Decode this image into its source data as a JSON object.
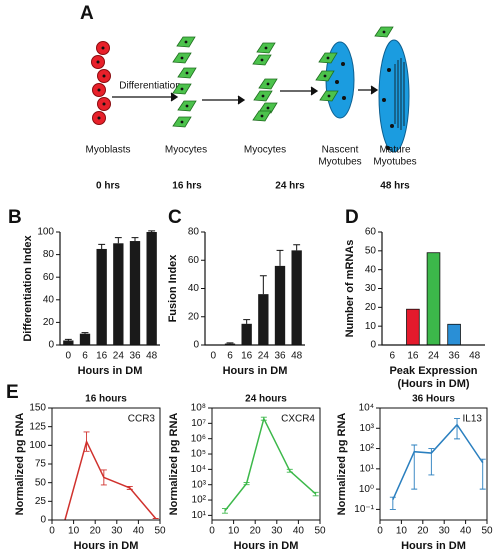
{
  "panels": [
    "A",
    "B",
    "C",
    "D",
    "E"
  ],
  "diagram": {
    "arrow_label": "Differentiation",
    "labels": [
      [
        "Myoblasts"
      ],
      [
        "Myocytes"
      ],
      [
        "Myocytes"
      ],
      [
        "Nascent",
        "Myotubes"
      ],
      [
        "Mature",
        "Myotubes"
      ]
    ],
    "times": [
      "0 hrs",
      "16 hrs",
      "24 hrs",
      "48 hrs"
    ]
  },
  "chart_data": [
    {
      "type": "bar",
      "categories": [
        "0",
        "6",
        "16",
        "24",
        "36",
        "48"
      ],
      "values": [
        4,
        10,
        85,
        90,
        92,
        100
      ],
      "errors": [
        1,
        1,
        4,
        5,
        3,
        1
      ],
      "color": "#1a1a1a",
      "ylim": [
        0,
        100
      ],
      "yticks": [
        0,
        20,
        40,
        60,
        80,
        100
      ],
      "ylabel": "Differentiation Index",
      "xlabel": [
        "Hours in DM"
      ]
    },
    {
      "type": "bar",
      "categories": [
        "0",
        "6",
        "16",
        "24",
        "36",
        "48"
      ],
      "values": [
        0,
        1,
        15,
        36,
        56,
        67
      ],
      "errors": [
        0,
        0.5,
        3,
        13,
        11,
        4
      ],
      "color": "#1a1a1a",
      "ylim": [
        0,
        80
      ],
      "yticks": [
        0,
        20,
        40,
        60,
        80
      ],
      "ylabel": "Fusion Index",
      "xlabel": [
        "Hours in DM"
      ]
    },
    {
      "type": "bar",
      "categories": [
        "6",
        "16",
        "24",
        "36",
        "48"
      ],
      "values": [
        0,
        19,
        49,
        11,
        0
      ],
      "colors": [
        "#e41a2c",
        "#e41a2c",
        "#3cb84a",
        "#2a8fd6",
        "#2a8fd6"
      ],
      "ylim": [
        0,
        60
      ],
      "yticks": [
        0,
        10,
        20,
        30,
        40,
        50,
        60
      ],
      "ylabel": "Number of mRNAs",
      "xlabel": [
        "Peak Expression",
        "(Hours in DM)"
      ]
    },
    {
      "type": "line",
      "title": "16 hours",
      "annotation": "CCR3",
      "color": "#d0312d",
      "log": false,
      "x": [
        6,
        16,
        24,
        36,
        48
      ],
      "values": [
        0,
        105,
        57,
        43,
        2
      ],
      "lower": [
        0,
        92,
        47,
        41,
        2
      ],
      "upper": [
        0,
        118,
        67,
        45,
        2
      ],
      "xlim": [
        0,
        50
      ],
      "xticks": [
        0,
        10,
        20,
        30,
        40,
        50
      ],
      "ylim": [
        0,
        150
      ],
      "yticks": [
        0,
        25,
        50,
        75,
        100,
        125,
        150
      ],
      "ylabel": "Normalized pg RNA",
      "xlabel": [
        "Hours in DM"
      ]
    },
    {
      "type": "line",
      "title": "24 hours",
      "annotation": "CXCR4",
      "color": "#3cb84a",
      "log": true,
      "x": [
        6,
        16,
        24,
        36,
        48
      ],
      "values": [
        20,
        1200,
        20000000,
        8000,
        250
      ],
      "lower": [
        14,
        1000,
        16000000,
        6500,
        190
      ],
      "upper": [
        28,
        1400,
        25000000,
        10000,
        320
      ],
      "xlim": [
        0,
        50
      ],
      "xticks": [
        0,
        10,
        20,
        30,
        40,
        50
      ],
      "ylim": [
        5,
        100000000
      ],
      "yticks": [
        {
          "value": 10,
          "label": "10¹"
        },
        {
          "value": 100,
          "label": "10²"
        },
        {
          "value": 1000,
          "label": "10³"
        },
        {
          "value": 10000,
          "label": "10⁴"
        },
        {
          "value": 100000,
          "label": "10⁵"
        },
        {
          "value": 1000000,
          "label": "10⁶"
        },
        {
          "value": 10000000,
          "label": "10⁷"
        },
        {
          "value": 100000000,
          "label": "10⁸"
        }
      ],
      "ylabel": "Normalized pg RNA",
      "xlabel": [
        "Hours in DM"
      ]
    },
    {
      "type": "line",
      "title": "36 Hours",
      "annotation": "IL13",
      "color": "#2a7fbf",
      "log": true,
      "x": [
        6,
        16,
        24,
        36,
        48
      ],
      "values": [
        0.3,
        70,
        60,
        1500,
        20
      ],
      "lower": [
        0.1,
        1,
        5,
        300,
        1
      ],
      "upper": [
        0.4,
        150,
        100,
        3000,
        30
      ],
      "xlim": [
        0,
        50
      ],
      "xticks": [
        0,
        10,
        20,
        30,
        40,
        50
      ],
      "ylim": [
        0.03,
        10000
      ],
      "yticks": [
        {
          "value": 0.1,
          "label": "10⁻¹"
        },
        {
          "value": 1,
          "label": "10⁰"
        },
        {
          "value": 10,
          "label": "10¹"
        },
        {
          "value": 100,
          "label": "10²"
        },
        {
          "value": 1000,
          "label": "10³"
        },
        {
          "value": 10000,
          "label": "10⁴"
        }
      ],
      "ylabel": "Normalized pg RNA",
      "xlabel": [
        "Hours in DM"
      ]
    }
  ]
}
